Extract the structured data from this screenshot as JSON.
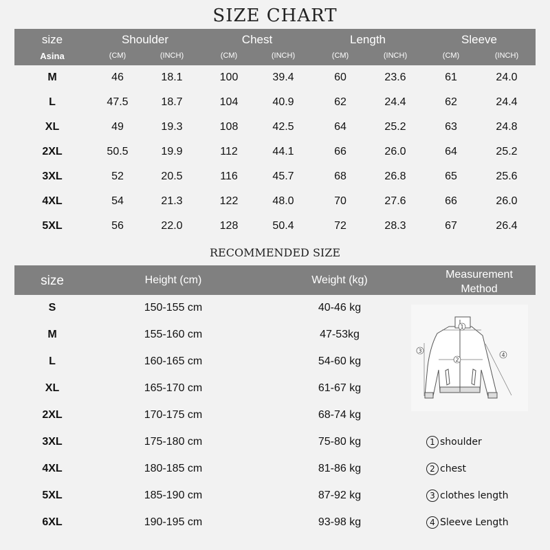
{
  "size_chart": {
    "title": "SIZE CHART",
    "headers": {
      "size": "size",
      "shoulder": "Shoulder",
      "chest": "Chest",
      "length": "Length",
      "sleeve": "Sleeve",
      "brand": "Asina",
      "cm": "(CM)",
      "inch": "(INCH)"
    },
    "rows": [
      [
        "M",
        "46",
        "18.1",
        "100",
        "39.4",
        "60",
        "23.6",
        "61",
        "24.0"
      ],
      [
        "L",
        "47.5",
        "18.7",
        "104",
        "40.9",
        "62",
        "24.4",
        "62",
        "24.4"
      ],
      [
        "XL",
        "49",
        "19.3",
        "108",
        "42.5",
        "64",
        "25.2",
        "63",
        "24.8"
      ],
      [
        "2XL",
        "50.5",
        "19.9",
        "112",
        "44.1",
        "66",
        "26.0",
        "64",
        "25.2"
      ],
      [
        "3XL",
        "52",
        "20.5",
        "116",
        "45.7",
        "68",
        "26.8",
        "65",
        "25.6"
      ],
      [
        "4XL",
        "54",
        "21.3",
        "122",
        "48.0",
        "70",
        "27.6",
        "66",
        "26.0"
      ],
      [
        "5XL",
        "56",
        "22.0",
        "128",
        "50.4",
        "72",
        "28.3",
        "67",
        "26.4"
      ]
    ]
  },
  "recommended": {
    "title": "RECOMMENDED SIZE",
    "headers": {
      "size": "size",
      "height": "Height (cm)",
      "weight": "Weight (kg)",
      "method": "Measurement Method"
    },
    "rows": [
      [
        "S",
        "150-155 cm",
        "40-46 kg"
      ],
      [
        "M",
        "155-160 cm",
        "47-53kg"
      ],
      [
        "L",
        "160-165 cm",
        "54-60 kg"
      ],
      [
        "XL",
        "165-170 cm",
        "61-67 kg"
      ],
      [
        "2XL",
        "170-175 cm",
        "68-74 kg"
      ],
      [
        "3XL",
        "175-180 cm",
        "75-80 kg"
      ],
      [
        "4XL",
        "180-185 cm",
        "81-86 kg"
      ],
      [
        "5XL",
        "185-190 cm",
        "87-92 kg"
      ],
      [
        "6XL",
        "190-195 cm",
        "93-98 kg"
      ]
    ],
    "legend": [
      {
        "num": "1",
        "label": "shoulder"
      },
      {
        "num": "2",
        "label": "chest"
      },
      {
        "num": "3",
        "label": "clothes length"
      },
      {
        "num": "4",
        "label": "Sleeve Length"
      }
    ],
    "diagram_marks": [
      "1",
      "2",
      "3",
      "4"
    ]
  },
  "colors": {
    "background": "#f2f2f2",
    "header": "#808080"
  }
}
